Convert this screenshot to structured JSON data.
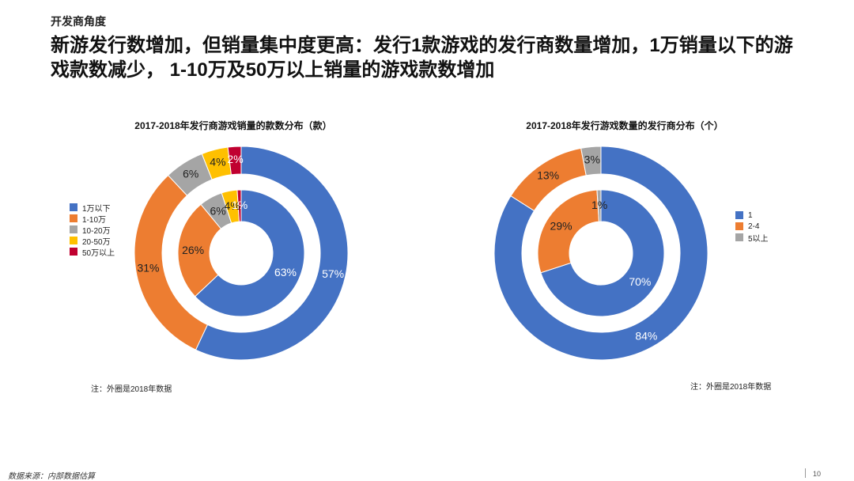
{
  "section_tag": "开发商角度",
  "headline": "新游发行数增加，但销量集中度更高：发行1款游戏的发行商数量增加，1万销量以下的游戏款数减少， 1-10万及50万以上销量的游戏款数增加",
  "chart_data": [
    {
      "type": "donut",
      "title": "2017-2018年发行商游戏销量的款数分布（款）",
      "categories": [
        "1万以下",
        "1-10万",
        "10-20万",
        "20-50万",
        "50万以上"
      ],
      "colors": [
        "#4472C4",
        "#ED7D31",
        "#A5A5A5",
        "#FFC000",
        "#C00030"
      ],
      "series": [
        {
          "ring": "outer",
          "values": [
            57,
            31,
            6,
            4,
            2
          ],
          "labels": [
            "57%",
            "31%",
            "6%",
            "4%",
            "2%"
          ]
        },
        {
          "ring": "inner",
          "values": [
            63,
            26,
            6,
            4,
            1
          ],
          "labels": [
            "63%",
            "26%",
            "6%",
            "4%",
            "1%"
          ]
        }
      ],
      "legend_position": "left",
      "note": "注：外圈是2018年数据"
    },
    {
      "type": "donut",
      "title": "2017-2018年发行游戏数量的发行商分布（个）",
      "categories": [
        "1",
        "2-4",
        "5以上"
      ],
      "colors": [
        "#4472C4",
        "#ED7D31",
        "#A5A5A5"
      ],
      "series": [
        {
          "ring": "outer",
          "values": [
            84,
            13,
            3
          ],
          "labels": [
            "84%",
            "13%",
            "3%"
          ]
        },
        {
          "ring": "inner",
          "values": [
            70,
            29,
            1
          ],
          "labels": [
            "70%",
            "29%",
            "1%"
          ]
        }
      ],
      "legend_position": "right",
      "note": "注：外圈是2018年数据"
    }
  ],
  "footer": {
    "source": "数据来源：内部数据估算",
    "page_number": "10"
  }
}
